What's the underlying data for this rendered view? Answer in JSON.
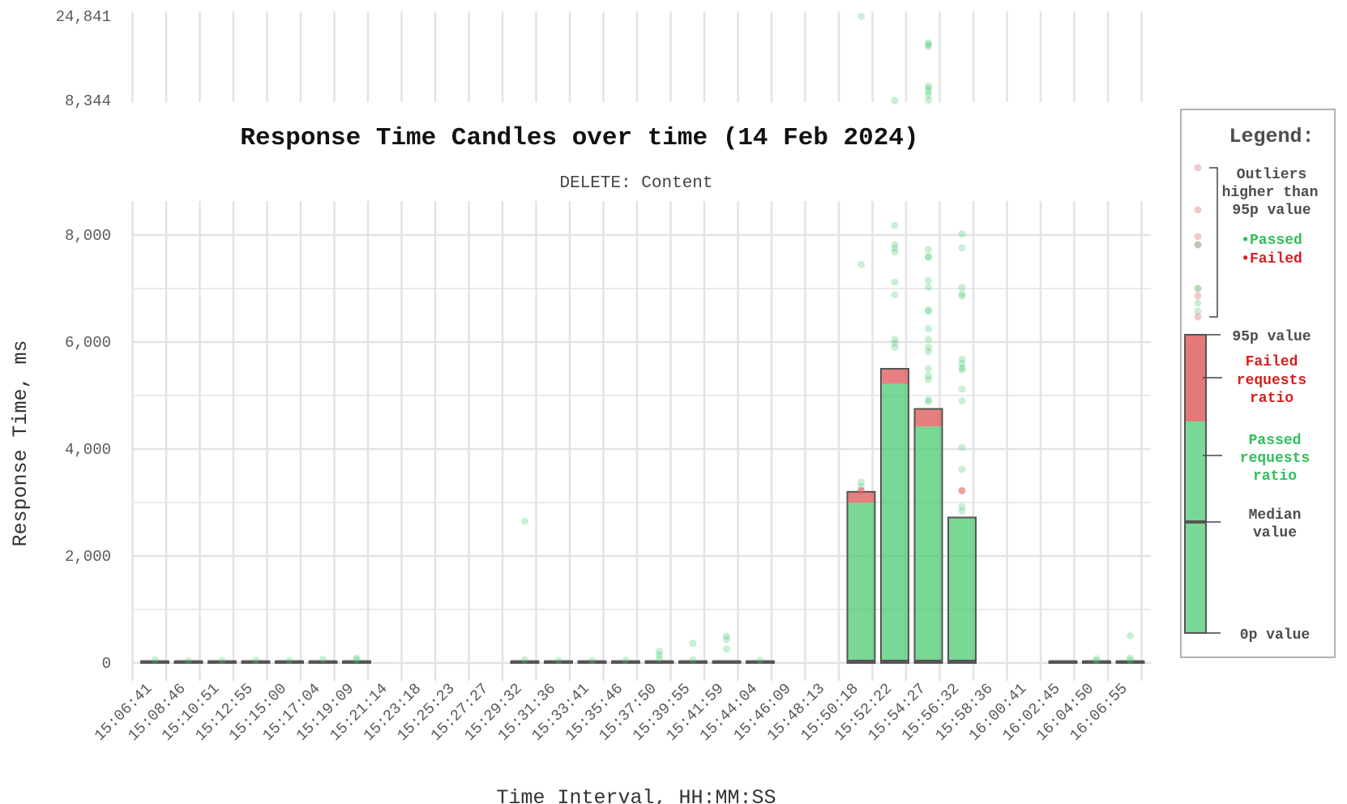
{
  "chart_data": {
    "type": "bar",
    "title": "Response Time Candles over time (14 Feb 2024)",
    "subtitle": "DELETE: Content",
    "xlabel": "Time Interval, HH:MM:SS",
    "ylabel": "Response Time, ms",
    "ylim": [
      0,
      8600
    ],
    "yticks": [
      "0",
      "2,000",
      "4,000",
      "6,000",
      "8,000"
    ],
    "outlier_panel": {
      "ticks": [
        "8,344",
        "24,841"
      ],
      "ylim": [
        8344,
        24841
      ]
    },
    "x_ticks": [
      "15:06:41",
      "15:08:46",
      "15:10:51",
      "15:12:55",
      "15:15:00",
      "15:17:04",
      "15:19:09",
      "15:21:14",
      "15:23:18",
      "15:25:23",
      "15:27:27",
      "15:29:32",
      "15:31:36",
      "15:33:41",
      "15:35:46",
      "15:37:50",
      "15:39:55",
      "15:41:59",
      "15:44:04",
      "15:46:09",
      "15:48:13",
      "15:50:18",
      "15:52:22",
      "15:54:27",
      "15:56:32",
      "15:58:36",
      "16:00:41",
      "16:02:45",
      "16:04:50",
      "16:06:55"
    ],
    "candles": [
      {
        "slot": 0,
        "p95": 30,
        "passed": 30,
        "median": 20
      },
      {
        "slot": 1,
        "p95": 30,
        "passed": 30,
        "median": 20
      },
      {
        "slot": 2,
        "p95": 30,
        "passed": 30,
        "median": 20
      },
      {
        "slot": 3,
        "p95": 30,
        "passed": 30,
        "median": 20
      },
      {
        "slot": 4,
        "p95": 30,
        "passed": 30,
        "median": 20
      },
      {
        "slot": 5,
        "p95": 30,
        "passed": 30,
        "median": 20
      },
      {
        "slot": 6,
        "p95": 30,
        "passed": 30,
        "median": 20
      },
      {
        "slot": 11,
        "p95": 30,
        "passed": 30,
        "median": 20
      },
      {
        "slot": 12,
        "p95": 30,
        "passed": 30,
        "median": 20
      },
      {
        "slot": 13,
        "p95": 30,
        "passed": 30,
        "median": 20
      },
      {
        "slot": 14,
        "p95": 30,
        "passed": 30,
        "median": 20
      },
      {
        "slot": 15,
        "p95": 30,
        "passed": 30,
        "median": 20
      },
      {
        "slot": 16,
        "p95": 30,
        "passed": 30,
        "median": 20
      },
      {
        "slot": 17,
        "p95": 30,
        "passed": 30,
        "median": 20
      },
      {
        "slot": 18,
        "p95": 30,
        "passed": 30,
        "median": 20
      },
      {
        "slot": 21,
        "p95": 3200,
        "passed": 3000,
        "median": 30
      },
      {
        "slot": 22,
        "p95": 5500,
        "passed": 5220,
        "median": 30
      },
      {
        "slot": 23,
        "p95": 4750,
        "passed": 4420,
        "median": 30
      },
      {
        "slot": 24,
        "p95": 2720,
        "passed": 2720,
        "median": 30
      },
      {
        "slot": 27,
        "p95": 30,
        "passed": 30,
        "median": 20
      },
      {
        "slot": 28,
        "p95": 30,
        "passed": 30,
        "median": 20
      },
      {
        "slot": 29,
        "p95": 30,
        "passed": 30,
        "median": 20
      }
    ],
    "outliers": [
      {
        "slot": 0,
        "v": 60,
        "s": "p"
      },
      {
        "slot": 1,
        "v": 40,
        "s": "p"
      },
      {
        "slot": 2,
        "v": 45,
        "s": "p"
      },
      {
        "slot": 3,
        "v": 50,
        "s": "p"
      },
      {
        "slot": 4,
        "v": 40,
        "s": "p"
      },
      {
        "slot": 5,
        "v": 70,
        "s": "p"
      },
      {
        "slot": 6,
        "v": 90,
        "s": "p"
      },
      {
        "slot": 6,
        "v": 60,
        "s": "p"
      },
      {
        "slot": 11,
        "v": 2650,
        "s": "p"
      },
      {
        "slot": 11,
        "v": 60,
        "s": "p"
      },
      {
        "slot": 12,
        "v": 40,
        "s": "p"
      },
      {
        "slot": 13,
        "v": 40,
        "s": "p"
      },
      {
        "slot": 14,
        "v": 50,
        "s": "p"
      },
      {
        "slot": 15,
        "v": 220,
        "s": "p"
      },
      {
        "slot": 15,
        "v": 150,
        "s": "p"
      },
      {
        "slot": 15,
        "v": 80,
        "s": "p"
      },
      {
        "slot": 16,
        "v": 370,
        "s": "p"
      },
      {
        "slot": 16,
        "v": 60,
        "s": "p"
      },
      {
        "slot": 17,
        "v": 500,
        "s": "p"
      },
      {
        "slot": 17,
        "v": 440,
        "s": "p"
      },
      {
        "slot": 17,
        "v": 260,
        "s": "p"
      },
      {
        "slot": 18,
        "v": 50,
        "s": "p"
      },
      {
        "slot": 21,
        "v": 7450,
        "s": "p"
      },
      {
        "slot": 21,
        "v": 3380,
        "s": "p"
      },
      {
        "slot": 21,
        "v": 3300,
        "s": "p"
      },
      {
        "slot": 21,
        "v": 3220,
        "s": "f"
      },
      {
        "slot": 21,
        "v": 24841,
        "s": "p"
      },
      {
        "slot": 22,
        "v": 8180,
        "s": "p"
      },
      {
        "slot": 22,
        "v": 7820,
        "s": "p"
      },
      {
        "slot": 22,
        "v": 7750,
        "s": "p"
      },
      {
        "slot": 22,
        "v": 7680,
        "s": "p"
      },
      {
        "slot": 22,
        "v": 7120,
        "s": "p"
      },
      {
        "slot": 22,
        "v": 6880,
        "s": "p"
      },
      {
        "slot": 22,
        "v": 6050,
        "s": "p"
      },
      {
        "slot": 22,
        "v": 5980,
        "s": "p"
      },
      {
        "slot": 22,
        "v": 5900,
        "s": "p"
      },
      {
        "slot": 22,
        "v": 8344,
        "s": "p"
      },
      {
        "slot": 23,
        "v": 7730,
        "s": "p"
      },
      {
        "slot": 23,
        "v": 7600,
        "s": "p"
      },
      {
        "slot": 23,
        "v": 7580,
        "s": "p"
      },
      {
        "slot": 23,
        "v": 7150,
        "s": "p"
      },
      {
        "slot": 23,
        "v": 7020,
        "s": "p"
      },
      {
        "slot": 23,
        "v": 6600,
        "s": "p"
      },
      {
        "slot": 23,
        "v": 6570,
        "s": "p"
      },
      {
        "slot": 23,
        "v": 6250,
        "s": "p"
      },
      {
        "slot": 23,
        "v": 6050,
        "s": "p"
      },
      {
        "slot": 23,
        "v": 5900,
        "s": "p"
      },
      {
        "slot": 23,
        "v": 5820,
        "s": "p"
      },
      {
        "slot": 23,
        "v": 5500,
        "s": "p"
      },
      {
        "slot": 23,
        "v": 5370,
        "s": "p"
      },
      {
        "slot": 23,
        "v": 5300,
        "s": "p"
      },
      {
        "slot": 23,
        "v": 4920,
        "s": "p"
      },
      {
        "slot": 23,
        "v": 4890,
        "s": "p"
      },
      {
        "slot": 23,
        "v": 19600,
        "s": "p"
      },
      {
        "slot": 23,
        "v": 19300,
        "s": "p"
      },
      {
        "slot": 23,
        "v": 18900,
        "s": "p"
      },
      {
        "slot": 23,
        "v": 11200,
        "s": "p"
      },
      {
        "slot": 23,
        "v": 10700,
        "s": "p"
      },
      {
        "slot": 23,
        "v": 10100,
        "s": "p"
      },
      {
        "slot": 23,
        "v": 9400,
        "s": "p"
      },
      {
        "slot": 23,
        "v": 8400,
        "s": "p"
      },
      {
        "slot": 24,
        "v": 8020,
        "s": "p"
      },
      {
        "slot": 24,
        "v": 7760,
        "s": "p"
      },
      {
        "slot": 24,
        "v": 7020,
        "s": "p"
      },
      {
        "slot": 24,
        "v": 6900,
        "s": "p"
      },
      {
        "slot": 24,
        "v": 6860,
        "s": "p"
      },
      {
        "slot": 24,
        "v": 5680,
        "s": "p"
      },
      {
        "slot": 24,
        "v": 5600,
        "s": "p"
      },
      {
        "slot": 24,
        "v": 5520,
        "s": "p"
      },
      {
        "slot": 24,
        "v": 5480,
        "s": "p"
      },
      {
        "slot": 24,
        "v": 5120,
        "s": "p"
      },
      {
        "slot": 24,
        "v": 4900,
        "s": "p"
      },
      {
        "slot": 24,
        "v": 4030,
        "s": "p"
      },
      {
        "slot": 24,
        "v": 3620,
        "s": "p"
      },
      {
        "slot": 24,
        "v": 3220,
        "s": "f"
      },
      {
        "slot": 24,
        "v": 2920,
        "s": "p"
      },
      {
        "slot": 24,
        "v": 2840,
        "s": "p"
      },
      {
        "slot": 28,
        "v": 80,
        "s": "p"
      },
      {
        "slot": 28,
        "v": 40,
        "s": "p"
      },
      {
        "slot": 29,
        "v": 510,
        "s": "p"
      },
      {
        "slot": 29,
        "v": 90,
        "s": "p"
      },
      {
        "slot": 29,
        "v": 50,
        "s": "p"
      }
    ],
    "colors": {
      "passed": "#4ccb72",
      "failed": "#e06060",
      "median": "#555555",
      "grid": "#e3e3e3"
    },
    "legend": {
      "title": "Legend:",
      "outliers_label": [
        "Outliers",
        "higher than",
        "95p value"
      ],
      "passed": "•Passed",
      "failed": "•Failed",
      "p95": "95p value",
      "failed_ratio": [
        "Failed",
        "requests",
        "ratio"
      ],
      "passed_ratio": [
        "Passed",
        "requests",
        "ratio"
      ],
      "median": [
        "Median",
        "value"
      ],
      "p0": "0p value",
      "placement": "right"
    }
  }
}
